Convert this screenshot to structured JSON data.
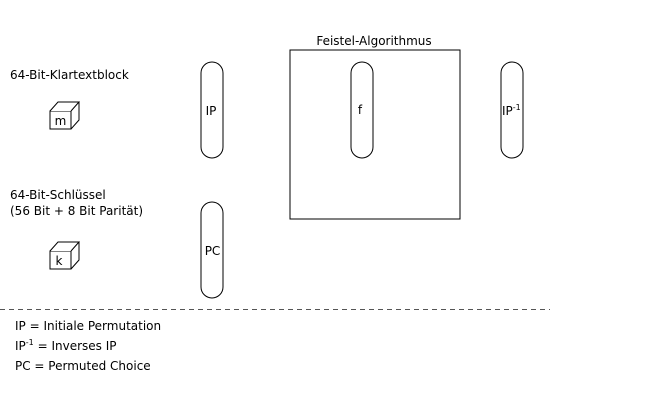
{
  "diagram": {
    "plaintext_label": "64-Bit-Klartextblock",
    "plaintext_symbol": "m",
    "key_label_line1": "64-Bit-Schlüssel",
    "key_label_line2": "(56 Bit + 8 Bit Parität)",
    "key_symbol": "k",
    "ip_label": "IP",
    "pc_label": "PC",
    "f_label": "f",
    "ip_inv_base": "IP",
    "ip_inv_sup": "-1",
    "feistel_title": "Feistel-Algorithmus"
  },
  "legend": {
    "line1": "IP = Initiale Permutation",
    "line2_base": "IP",
    "line2_sup": "-1",
    "line2_rest": " = Inverses IP",
    "line3": "PC = Permuted Choice"
  }
}
